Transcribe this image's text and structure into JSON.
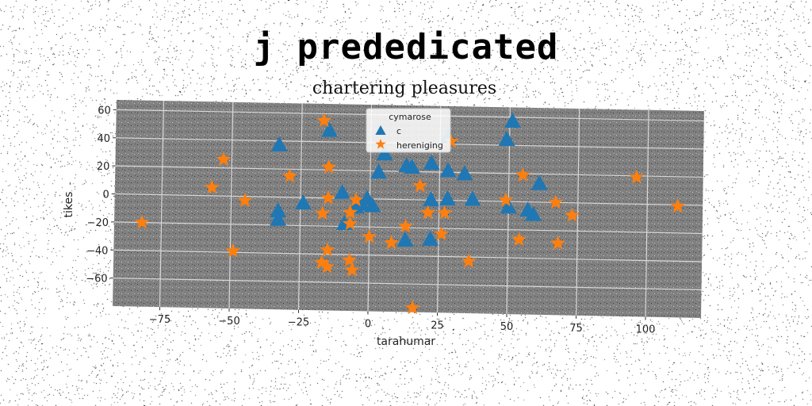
{
  "suptitle": "j prededicated",
  "chart_data": {
    "type": "scatter",
    "title": "chartering pleasures",
    "xlabel": "tarahumar",
    "ylabel": "tikes",
    "xlim": [
      -92,
      120
    ],
    "ylim": [
      -80,
      67
    ],
    "xticks": [
      -75,
      -50,
      -25,
      0,
      25,
      50,
      75,
      100
    ],
    "yticks": [
      -60,
      -40,
      -20,
      0,
      20,
      40,
      60
    ],
    "grid": true,
    "legend": {
      "title": "cymarose",
      "placement": "top-center"
    },
    "series": [
      {
        "name": "c",
        "marker": "triangle",
        "color": "#1f77b4",
        "points": [
          [
            -15,
            48
          ],
          [
            -33,
            37
          ],
          [
            -33,
            -10
          ],
          [
            -33,
            -16
          ],
          [
            -24,
            -4
          ],
          [
            -10,
            4
          ],
          [
            -9,
            -18
          ],
          [
            -5,
            -6
          ],
          [
            -3,
            -4
          ],
          [
            -1,
            0
          ],
          [
            1,
            -5
          ],
          [
            3,
            19
          ],
          [
            5,
            32
          ],
          [
            13,
            24
          ],
          [
            15,
            23
          ],
          [
            22,
            26
          ],
          [
            28,
            21
          ],
          [
            34,
            19
          ],
          [
            22,
            0
          ],
          [
            28,
            1
          ],
          [
            37,
            1
          ],
          [
            13,
            -29
          ],
          [
            22,
            -28
          ],
          [
            28,
            45
          ],
          [
            49,
            44
          ],
          [
            51,
            57
          ],
          [
            50,
            -4
          ],
          [
            57,
            -6
          ],
          [
            59,
            -9
          ],
          [
            61,
            13
          ]
        ]
      },
      {
        "name": "hereniging",
        "marker": "star",
        "color": "#ff7f0e",
        "points": [
          [
            -82,
            -20
          ],
          [
            -53,
            26
          ],
          [
            -57,
            6
          ],
          [
            -45,
            -3
          ],
          [
            -49,
            -39
          ],
          [
            -29,
            15
          ],
          [
            -17,
            55
          ],
          [
            -15,
            22
          ],
          [
            -15,
            0
          ],
          [
            -17,
            -11
          ],
          [
            -15,
            -37
          ],
          [
            -17,
            -46
          ],
          [
            -15,
            -49
          ],
          [
            -7,
            -10
          ],
          [
            -7,
            -18
          ],
          [
            -5,
            -1
          ],
          [
            -7,
            -44
          ],
          [
            -6,
            -51
          ],
          [
            0,
            -27
          ],
          [
            8,
            -31
          ],
          [
            13,
            -19
          ],
          [
            18,
            10
          ],
          [
            21,
            -9
          ],
          [
            27,
            -9
          ],
          [
            26,
            -24
          ],
          [
            36,
            -43
          ],
          [
            16,
            -77
          ],
          [
            29,
            42
          ],
          [
            49,
            1
          ],
          [
            54,
            -27
          ],
          [
            55,
            19
          ],
          [
            67,
            0
          ],
          [
            68,
            -29
          ],
          [
            73,
            -9
          ],
          [
            96,
            19
          ],
          [
            111,
            -1
          ]
        ]
      }
    ]
  }
}
